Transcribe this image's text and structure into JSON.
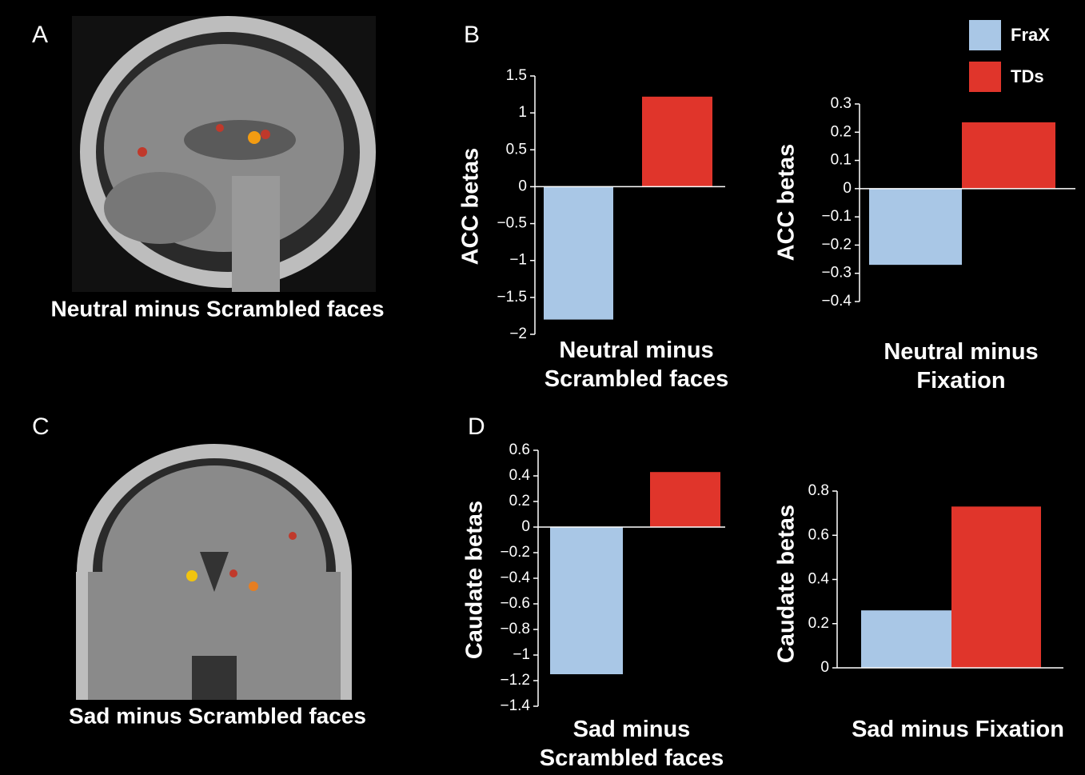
{
  "panels": [
    {
      "label": "A",
      "caption": "Neutral minus Scrambled faces"
    },
    {
      "label": "B"
    },
    {
      "label": "C",
      "caption": "Sad minus Scrambled faces"
    },
    {
      "label": "D"
    }
  ],
  "chart_data": [
    {
      "type": "bar",
      "ylabel": "ACC betas",
      "xlabel": "Neutral minus Scrambled faces",
      "categories": [
        null
      ],
      "series": [
        {
          "name": "FraX",
          "color": "#a9c7e6",
          "values": [
            -1.8
          ]
        },
        {
          "name": "TDs",
          "color": "#e0352b",
          "values": [
            1.22
          ]
        }
      ],
      "ylim": [
        -2,
        1.5
      ],
      "yticks": [
        {
          "value": -2,
          "label": "−2"
        },
        {
          "value": -1.5,
          "label": "−1.5"
        },
        {
          "value": -1,
          "label": "−1"
        },
        {
          "value": -0.5,
          "label": "−0.5"
        },
        0,
        0.5,
        1,
        1.5
      ]
    },
    {
      "type": "bar",
      "ylabel": "ACC betas",
      "xlabel": "Neutral minus Fixation",
      "categories": [
        null
      ],
      "series": [
        {
          "name": "FraX",
          "color": "#a9c7e6",
          "values": [
            -0.27
          ]
        },
        {
          "name": "TDs",
          "color": "#e0352b",
          "values": [
            0.235
          ]
        }
      ],
      "ylim": [
        -0.4,
        0.3
      ],
      "yticks": [
        {
          "value": -0.4,
          "label": "−0.4"
        },
        {
          "value": -0.3,
          "label": "−0.3"
        },
        {
          "value": -0.2,
          "label": "−0.2"
        },
        {
          "value": -0.1,
          "label": "−0.1"
        },
        0,
        0.1,
        0.2,
        0.3
      ]
    },
    {
      "type": "bar",
      "ylabel": "Caudate betas",
      "xlabel": "Sad minus Scrambled faces",
      "categories": [
        null
      ],
      "series": [
        {
          "name": "FraX",
          "color": "#a9c7e6",
          "values": [
            -1.15
          ]
        },
        {
          "name": "TDs",
          "color": "#e0352b",
          "values": [
            0.43
          ]
        }
      ],
      "ylim": [
        -1.4,
        0.6
      ],
      "yticks": [
        {
          "value": -1.4,
          "label": "−1.4"
        },
        {
          "value": -1.2,
          "label": "−1.2"
        },
        {
          "value": -1,
          "label": "−1"
        },
        {
          "value": -0.8,
          "label": "−0.8"
        },
        {
          "value": -0.6,
          "label": "−0.6"
        },
        {
          "value": -0.4,
          "label": "−0.4"
        },
        {
          "value": -0.2,
          "label": "−0.2"
        },
        0,
        0.2,
        0.4,
        0.6
      ]
    },
    {
      "type": "bar",
      "ylabel": "Caudate betas",
      "xlabel": "Sad minus Fixation",
      "categories": [
        null
      ],
      "series": [
        {
          "name": "FraX",
          "color": "#a9c7e6",
          "values": [
            0.26
          ]
        },
        {
          "name": "TDs",
          "color": "#e0352b",
          "values": [
            0.73
          ]
        }
      ],
      "ylim": [
        0,
        0.8
      ],
      "yticks": [
        0,
        0.2,
        0.4,
        0.6,
        0.8
      ]
    }
  ]
}
